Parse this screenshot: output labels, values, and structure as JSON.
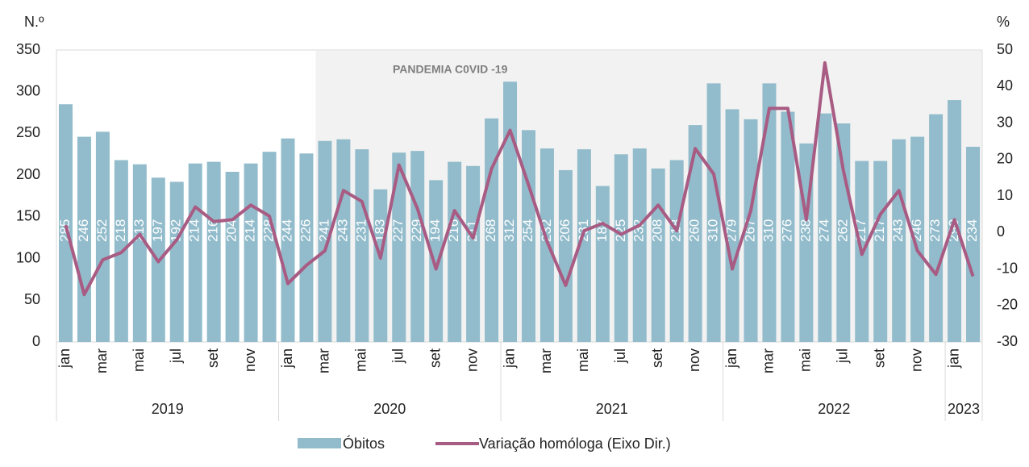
{
  "chart_data": {
    "type": "bar",
    "y_label": "N.º",
    "y2_label": "%",
    "annotation": "PANDEMIA C0VID -19",
    "categories": [
      "jan",
      null,
      "mar",
      null,
      "mai",
      null,
      "jul",
      null,
      "set",
      null,
      "nov",
      null,
      "jan",
      null,
      "mar",
      null,
      "mai",
      null,
      "jul",
      null,
      "set",
      null,
      "nov",
      null,
      "jan",
      null,
      "mar",
      null,
      "mai",
      null,
      "jul",
      null,
      "set",
      null,
      "nov",
      null,
      "jan",
      null,
      "mar",
      null,
      "mai",
      null,
      "jul",
      null,
      "set",
      null,
      "nov",
      null,
      "jan",
      null
    ],
    "years": [
      "2019",
      "2020",
      "2021",
      "2022",
      "2023"
    ],
    "series": [
      {
        "name": "Óbitos",
        "color": "#92bccb",
        "values": [
          285,
          246,
          252,
          218,
          213,
          197,
          192,
          214,
          216,
          204,
          214,
          228,
          244,
          226,
          241,
          243,
          231,
          183,
          227,
          229,
          194,
          216,
          211,
          268,
          312,
          254,
          232,
          206,
          231,
          187,
          225,
          232,
          208,
          218,
          260,
          310,
          279,
          267,
          310,
          276,
          238,
          274,
          262,
          217,
          217,
          243,
          246,
          273,
          290,
          234
        ]
      },
      {
        "name": "Variação homóloga (Eixo Dir.)",
        "color": "#a85b83",
        "axis": "y2",
        "type": "line",
        "values": [
          2,
          -17,
          -7.5,
          -5.5,
          -0.5,
          -8,
          -2,
          7,
          3,
          3.5,
          7.5,
          4.5,
          -14,
          -9,
          -5,
          11.5,
          8.5,
          -7,
          18.5,
          6.5,
          -10,
          6,
          -1.5,
          17.5,
          28,
          13,
          -2.5,
          -14.5,
          0.5,
          2.5,
          -0.5,
          2,
          7.5,
          0.5,
          23,
          16,
          -10,
          6,
          34,
          34,
          3.5,
          46.5,
          17,
          -6,
          5,
          11.5,
          -5,
          -11.5,
          3.5,
          -12
        ]
      }
    ],
    "ylim": [
      0,
      350
    ],
    "yticks": [
      0,
      50,
      100,
      150,
      200,
      250,
      300,
      350
    ],
    "y2lim": [
      -30,
      50
    ],
    "y2ticks": [
      -30,
      -20,
      -10,
      0,
      10,
      20,
      30,
      40,
      50
    ]
  }
}
